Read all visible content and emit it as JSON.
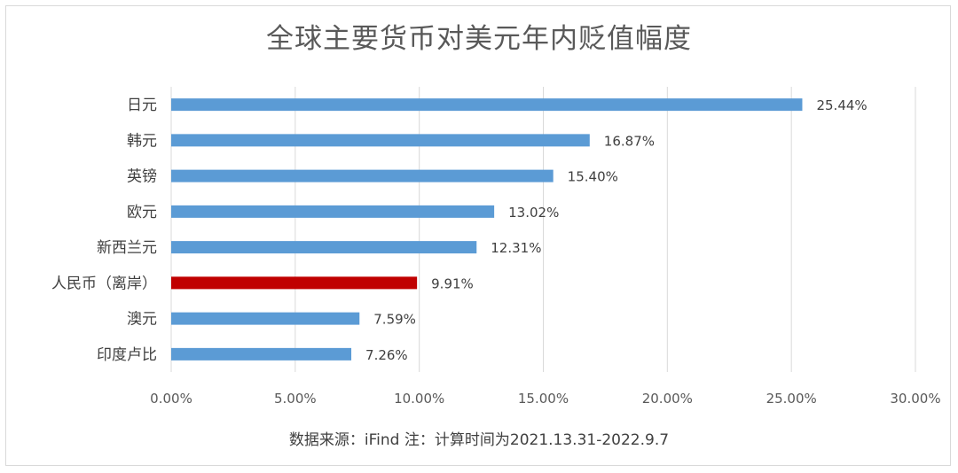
{
  "title": "全球主要货币对美元年内贬值幅度",
  "footer": "数据来源：iFind 注：计算时间为2021.13.31-2022.9.7",
  "colors": {
    "bar": "#5b9bd5",
    "highlight": "#c00000",
    "grid": "#d9d9d9",
    "text": "#595959"
  },
  "chart_data": {
    "type": "bar",
    "orientation": "horizontal",
    "categories": [
      "日元",
      "韩元",
      "英镑",
      "欧元",
      "新西兰元",
      "人民币（离岸）",
      "澳元",
      "印度卢比"
    ],
    "values": [
      25.44,
      16.87,
      15.4,
      13.02,
      12.31,
      9.91,
      7.59,
      7.26
    ],
    "value_labels": [
      "25.44%",
      "16.87%",
      "15.40%",
      "13.02%",
      "12.31%",
      "9.91%",
      "7.59%",
      "7.26%"
    ],
    "highlight_category": "人民币（离岸）",
    "xlim": [
      0,
      30
    ],
    "xticks": [
      0,
      5,
      10,
      15,
      20,
      25,
      30
    ],
    "xtick_labels": [
      "0.00%",
      "5.00%",
      "10.00%",
      "15.00%",
      "20.00%",
      "25.00%",
      "30.00%"
    ],
    "grid": "vertical",
    "legend": "none"
  }
}
